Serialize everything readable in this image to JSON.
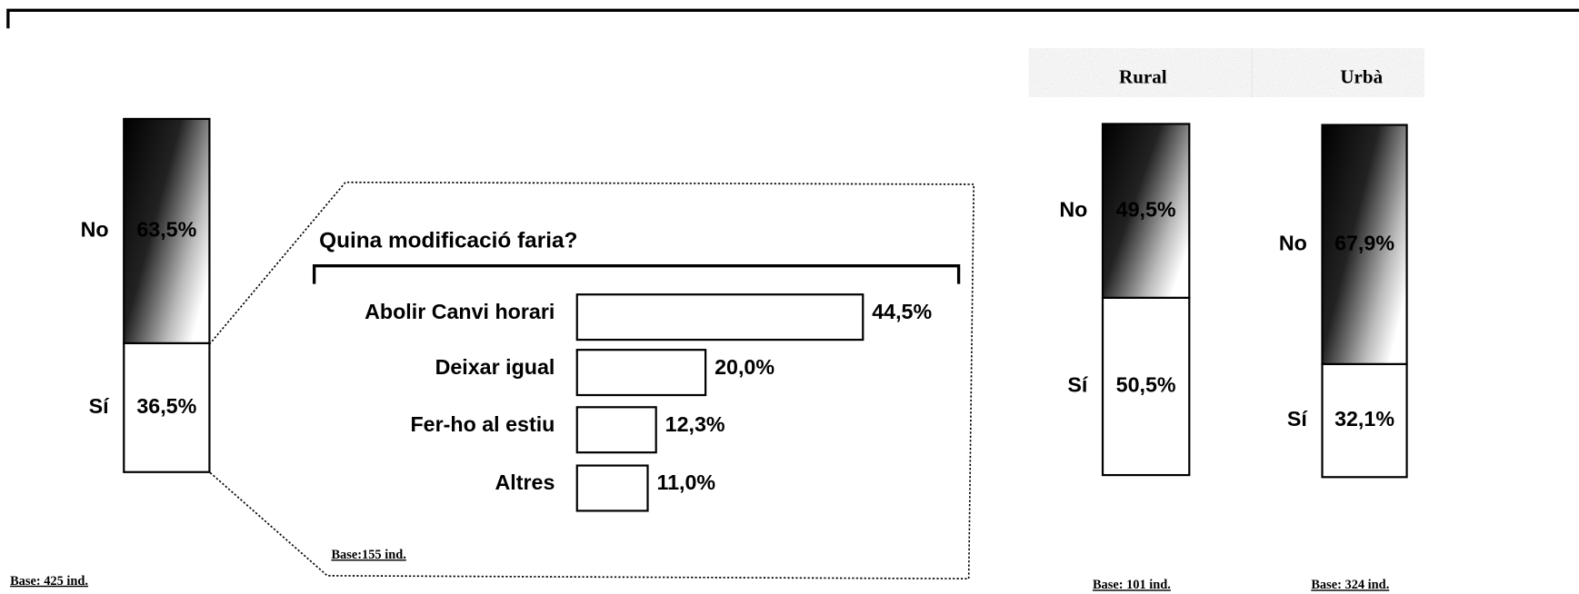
{
  "chart_data": [
    {
      "type": "stacked_bar",
      "categories": [
        "No",
        "Sí"
      ],
      "values": [
        63.5,
        36.5
      ],
      "value_labels": [
        "63,5%",
        "36,5%"
      ],
      "ylim": [
        0,
        100
      ],
      "note": "Base: 425 ind."
    },
    {
      "type": "hbar",
      "title": "Quina modificació faria?",
      "categories": [
        "Abolir Canvi horari",
        "Deixar igual",
        "Fer-ho al estiu",
        "Altres"
      ],
      "values": [
        44.5,
        20.0,
        12.3,
        11.0
      ],
      "value_labels": [
        "44,5%",
        "20,0%",
        "12,3%",
        "11,0%"
      ],
      "note": "Base:155 ind."
    },
    {
      "type": "stacked_bar",
      "title": "Rural",
      "categories": [
        "No",
        "Sí"
      ],
      "values": [
        49.5,
        50.5
      ],
      "value_labels": [
        "49,5%",
        "50,5%"
      ],
      "ylim": [
        0,
        100
      ],
      "note": "Base: 101 ind."
    },
    {
      "type": "stacked_bar",
      "title": "Urbà",
      "categories": [
        "No",
        "Sí"
      ],
      "values": [
        67.9,
        32.1
      ],
      "value_labels": [
        "67,9%",
        "32,1%"
      ],
      "ylim": [
        0,
        100
      ],
      "note": "Base: 324 ind."
    }
  ]
}
